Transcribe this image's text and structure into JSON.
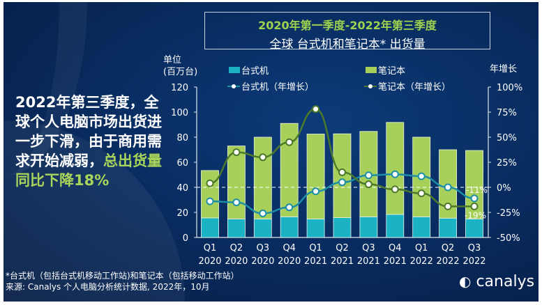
{
  "title": {
    "line1": "2020年第一季度-2022年第三季度",
    "line2": "全球 台式机和笔记本* 出货量"
  },
  "headline": {
    "part1": "2022年第三季度，全球个人电脑市场出货进一步下滑，由于商用需求开始减弱，",
    "part2": "总出货量同比下降18%"
  },
  "footnote": {
    "line1": "*台式机（包括台式机移动工作站)和笔记本（包括移动工作站）",
    "line2": "来源: Canalys 个人电脑分析统计数据, 2022年，10月"
  },
  "logo": "canalys",
  "chart_data": {
    "type": "bar",
    "stacked": true,
    "categories": [
      "Q1 2020",
      "Q2 2020",
      "Q3 2020",
      "Q4 2020",
      "Q1 2021",
      "Q2 2021",
      "Q3 2021",
      "Q4 2021",
      "Q1 2022",
      "Q2 2022",
      "Q3 2022"
    ],
    "category_labels": [
      [
        "Q1",
        "2020"
      ],
      [
        "Q2",
        "2020"
      ],
      [
        "Q3",
        "2020"
      ],
      [
        "Q4",
        "2020"
      ],
      [
        "Q1",
        "2021"
      ],
      [
        "Q2",
        "2021"
      ],
      [
        "Q3",
        "2021"
      ],
      [
        "Q4",
        "2021"
      ],
      [
        "Q1",
        "2022"
      ],
      [
        "Q2",
        "2022"
      ],
      [
        "Q3",
        "2022"
      ]
    ],
    "ylabel": "单位\n(百万台)",
    "ylabel_lines": [
      "单位",
      "(百万台)"
    ],
    "y2label": "年增长",
    "ylim": [
      0,
      120
    ],
    "yticks": [
      "0",
      "20",
      "40",
      "60",
      "80",
      "100",
      "120"
    ],
    "y2lim": [
      -50,
      100
    ],
    "y2ticks": [
      "-50%",
      "-25%",
      "0%",
      "25%",
      "50%",
      "75%",
      "100%"
    ],
    "legend_position": "top",
    "series": [
      {
        "name": "台式机",
        "type": "bar",
        "axis": "left",
        "color": "#1bb3c4",
        "values": [
          15.6,
          14.8,
          14.7,
          16.5,
          14.7,
          15.8,
          16.5,
          18.4,
          16.5,
          15.4,
          14.8
        ]
      },
      {
        "name": "笔记本",
        "type": "bar",
        "axis": "left",
        "color": "#a6d05a",
        "values": [
          37.8,
          58.2,
          65.3,
          74.5,
          67.8,
          66.9,
          68.1,
          73.4,
          63.5,
          54.6,
          54.6
        ]
      },
      {
        "name": "台式机（年增长）",
        "type": "line",
        "axis": "right",
        "color": "#1c8fa6",
        "values": [
          -14,
          -15,
          -26,
          -20,
          -4,
          5,
          12,
          13,
          11,
          0,
          -11
        ]
      },
      {
        "name": "笔记本（年增长）",
        "type": "line",
        "axis": "right",
        "color": "#4d7a2a",
        "values": [
          4,
          35,
          30,
          45,
          78,
          15,
          3,
          -2,
          -6,
          -19,
          -19
        ]
      }
    ],
    "annotations": [
      "-11%",
      "-19%"
    ]
  }
}
